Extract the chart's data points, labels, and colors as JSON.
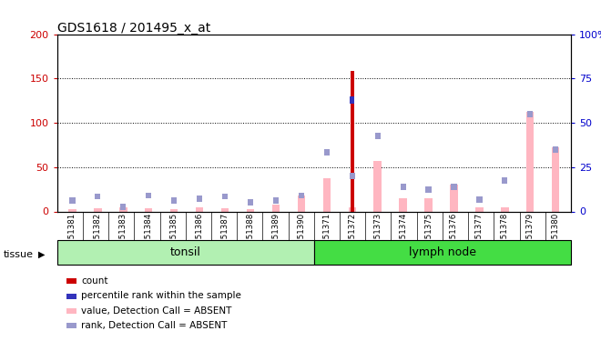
{
  "title": "GDS1618 / 201495_x_at",
  "samples": [
    "GSM51381",
    "GSM51382",
    "GSM51383",
    "GSM51384",
    "GSM51385",
    "GSM51386",
    "GSM51387",
    "GSM51388",
    "GSM51389",
    "GSM51390",
    "GSM51371",
    "GSM51372",
    "GSM51373",
    "GSM51374",
    "GSM51375",
    "GSM51376",
    "GSM51377",
    "GSM51378",
    "GSM51379",
    "GSM51380"
  ],
  "groups": [
    {
      "label": "tonsil",
      "color": "#b2f0b2",
      "start": 0,
      "end": 10
    },
    {
      "label": "lymph node",
      "color": "#44dd44",
      "start": 10,
      "end": 20
    }
  ],
  "value_absent": [
    3,
    4,
    5,
    4,
    3,
    5,
    4,
    3,
    8,
    18,
    37,
    5,
    57,
    15,
    15,
    30,
    5,
    5,
    112,
    72
  ],
  "rank_absent_pct": [
    6,
    8.5,
    2.5,
    9,
    6,
    7,
    8.5,
    5,
    6,
    9,
    33.5,
    20,
    42.5,
    14,
    12.5,
    14,
    6.5,
    17.5,
    55,
    35
  ],
  "count_left": [
    0,
    0,
    0,
    0,
    0,
    0,
    0,
    0,
    0,
    0,
    0,
    158,
    0,
    0,
    0,
    0,
    0,
    0,
    0,
    0
  ],
  "percentile_rank_pct": [
    0,
    0,
    0,
    0,
    0,
    0,
    0,
    0,
    0,
    0,
    0,
    63,
    0,
    0,
    0,
    0,
    0,
    0,
    0,
    0
  ],
  "ylim_left": [
    0,
    200
  ],
  "ylim_right": [
    0,
    100
  ],
  "yticks_left": [
    0,
    50,
    100,
    150,
    200
  ],
  "yticks_right": [
    0,
    25,
    50,
    75,
    100
  ],
  "yticklabels_right": [
    "0",
    "25",
    "50",
    "75",
    "100%"
  ],
  "left_axis_color": "#CC0000",
  "right_axis_color": "#0000CC",
  "bar_value_color": "#FFB6C1",
  "bar_rank_color": "#9999CC",
  "bar_count_color": "#CC0000",
  "bar_percentile_color": "#3333BB",
  "tissue_label": "tissue",
  "legend_items": [
    {
      "color": "#CC0000",
      "label": "count"
    },
    {
      "color": "#3333BB",
      "label": "percentile rank within the sample"
    },
    {
      "color": "#FFB6C1",
      "label": "value, Detection Call = ABSENT"
    },
    {
      "color": "#9999CC",
      "label": "rank, Detection Call = ABSENT"
    }
  ]
}
